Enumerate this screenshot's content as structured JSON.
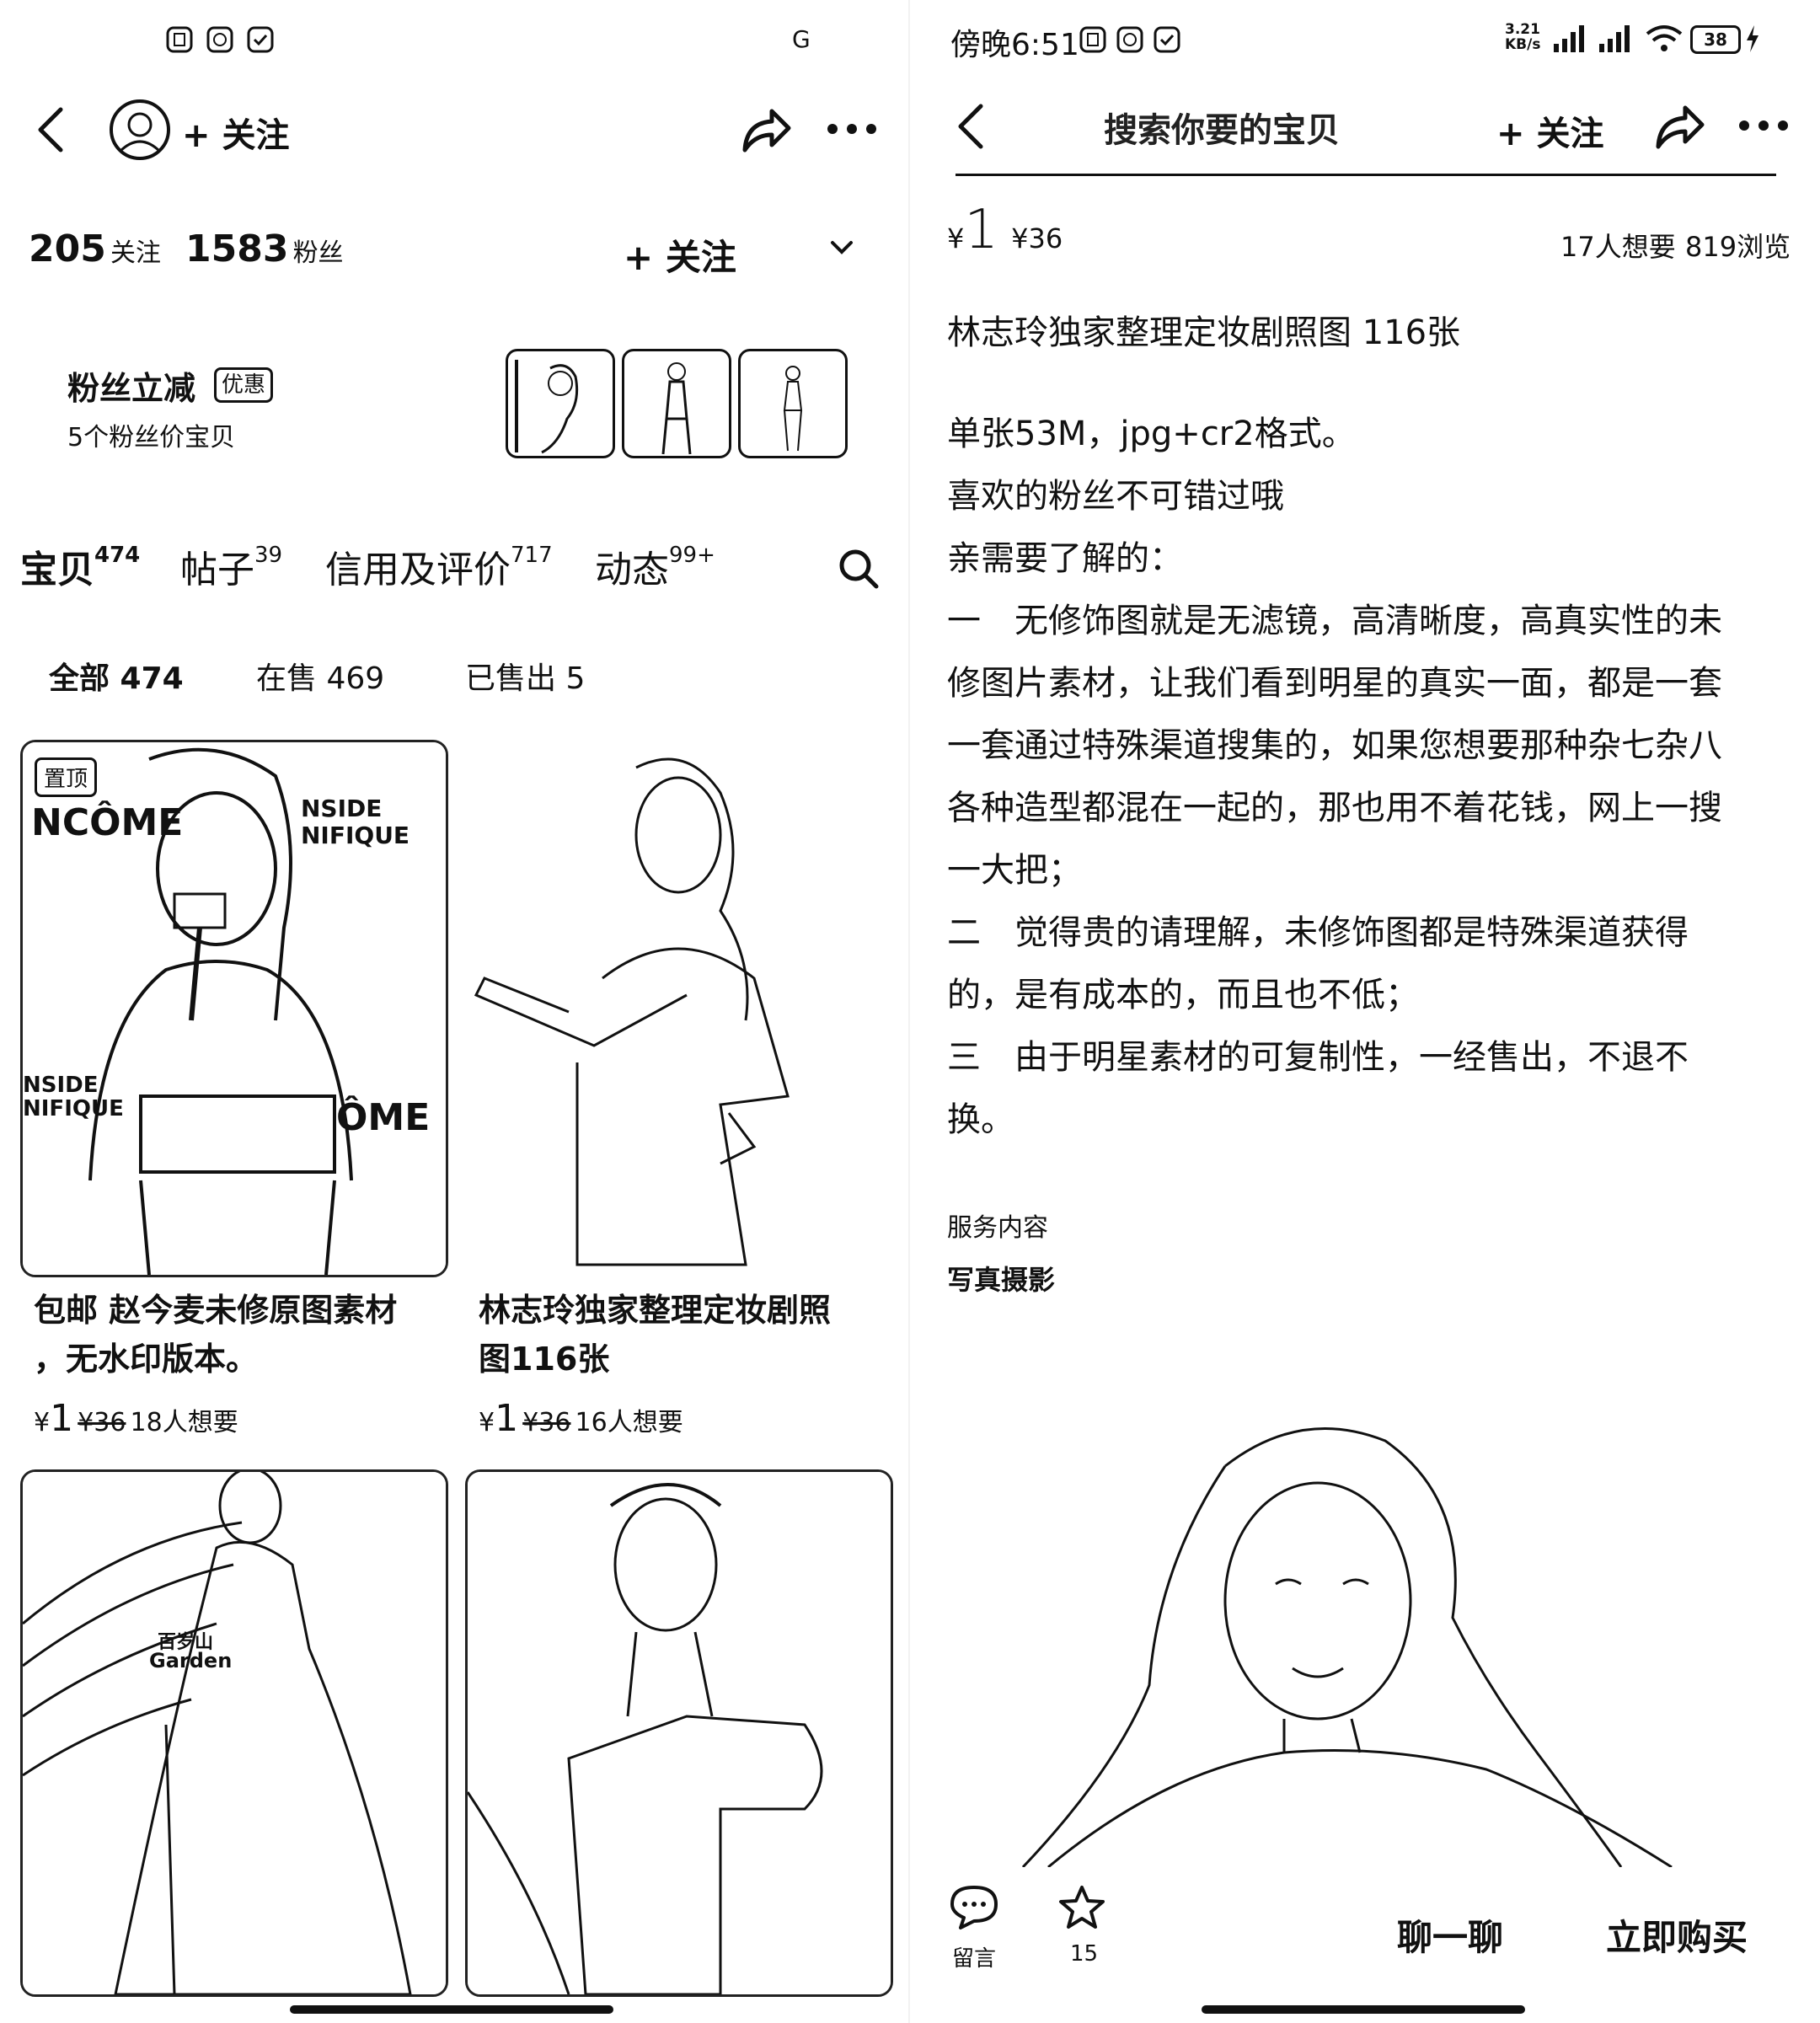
{
  "left": {
    "status": {
      "right_icon_text": "G"
    },
    "header": {
      "follow_label": "+ 关注"
    },
    "stats": {
      "following_count": "205",
      "following_label": "关注",
      "fans_count": "1583",
      "fans_label": "粉丝",
      "follow_button": "+ 关注"
    },
    "promo": {
      "title": "粉丝立减",
      "badge": "优惠",
      "subtitle": "5个粉丝价宝贝"
    },
    "tabs": [
      {
        "label": "宝贝",
        "count": "474"
      },
      {
        "label": "帖子",
        "count": "39"
      },
      {
        "label": "信用及评价",
        "count": "717"
      },
      {
        "label": "动态",
        "count": "99+"
      }
    ],
    "subtabs": [
      "全部 474",
      "在售 469",
      "已售出 5"
    ],
    "products": [
      {
        "pinned_badge": "置顶",
        "title_line1": "包邮 赵今麦未修原图素材",
        "title_line2": "，无水印版本。",
        "currency": "¥",
        "price": "1",
        "original_price": "¥36",
        "wants": "18人想要"
      },
      {
        "title_line1": "林志玲独家整理定妆剧照",
        "title_line2": "图116张",
        "currency": "¥",
        "price": "1",
        "original_price": "¥36",
        "wants": "16人想要"
      }
    ],
    "watermark_texts": [
      "NCÔME",
      "NSIDE",
      "NIFIQUE",
      "ÔME",
      "百岁山",
      "Garden"
    ]
  },
  "right": {
    "status": {
      "time": "傍晚6:51",
      "net_speed": "3.21 KB/s",
      "battery": "38"
    },
    "header": {
      "search_placeholder": "搜索你要的宝贝",
      "follow_label": "+ 关注"
    },
    "price": {
      "currency": "¥",
      "value": "1",
      "original": "¥36",
      "wants": "17人想要",
      "views": "819浏览"
    },
    "title": "林志玲独家整理定妆剧照图 116张",
    "description": [
      "单张53M，jpg+cr2格式。",
      "喜欢的粉丝不可错过哦",
      "亲需要了解的：",
      "一　无修饰图就是无滤镜，高清晰度，高真实性的未",
      "修图片素材，让我们看到明星的真实一面，都是一套",
      "一套通过特殊渠道搜集的，如果您想要那种杂七杂八",
      "各种造型都混在一起的，那也用不着花钱，网上一搜",
      "一大把；",
      "二　觉得贵的请理解，未修饰图都是特殊渠道获得",
      "的，是有成本的，而且也不低；",
      "三　由于明星素材的可复制性，一经售出，不退不",
      "换。"
    ],
    "service": {
      "label": "服务内容",
      "value": "写真摄影"
    },
    "bottom_bar": {
      "comment_label": "留言",
      "favorite_count": "15",
      "chat_button": "聊一聊",
      "buy_button": "立即购买"
    }
  }
}
